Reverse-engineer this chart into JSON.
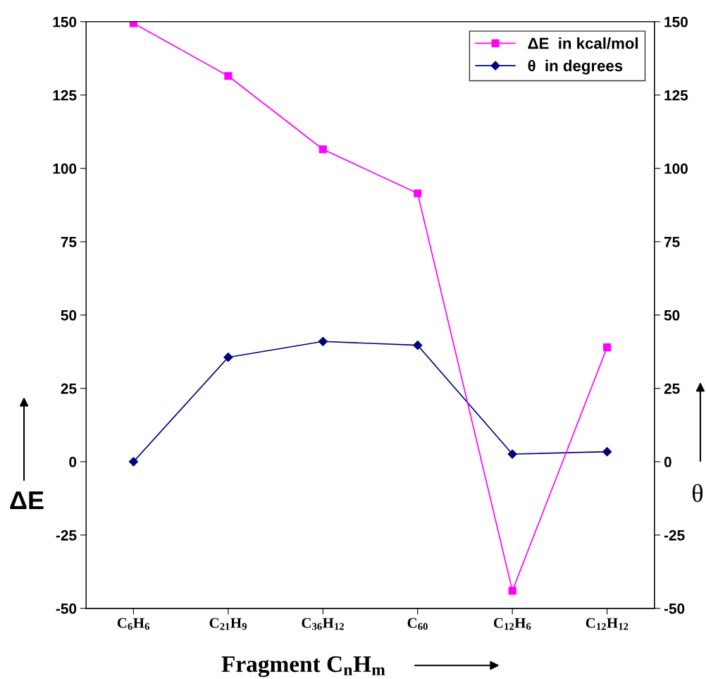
{
  "chart_data": {
    "type": "line",
    "xlabel": "Fragment C$_{n}$H$_{m}$",
    "ylabel": "ΔE",
    "y2label": "θ",
    "categories": [
      "C$_{6}$H$_{6}$",
      "C$_{21}$H$_{9}$",
      "C$_{36}$H$_{12}$",
      "C$_{60}$",
      "C$_{12}$H$_{6}$",
      "C$_{12}$H$_{12}$"
    ],
    "series": [
      {
        "name": "ΔE  in kcal/mol",
        "color": "#ff00ff",
        "marker": "square",
        "values": [
          149.5,
          131.5,
          106.5,
          91.5,
          -44,
          39
        ]
      },
      {
        "name": "θ  in degrees",
        "color": "#000080",
        "marker": "diamond",
        "axis": "y2",
        "values": [
          0,
          35.6,
          41,
          39.7,
          2.6,
          3.4
        ]
      }
    ],
    "ylim": [
      -50,
      150
    ],
    "yticks": [
      -50,
      -25,
      0,
      25,
      50,
      75,
      100,
      125,
      150
    ],
    "y2lim": [
      -50,
      150
    ],
    "y2ticks": [
      -50,
      -25,
      0,
      25,
      50,
      75,
      100,
      125,
      150
    ],
    "legend": "top right",
    "grid": false
  }
}
